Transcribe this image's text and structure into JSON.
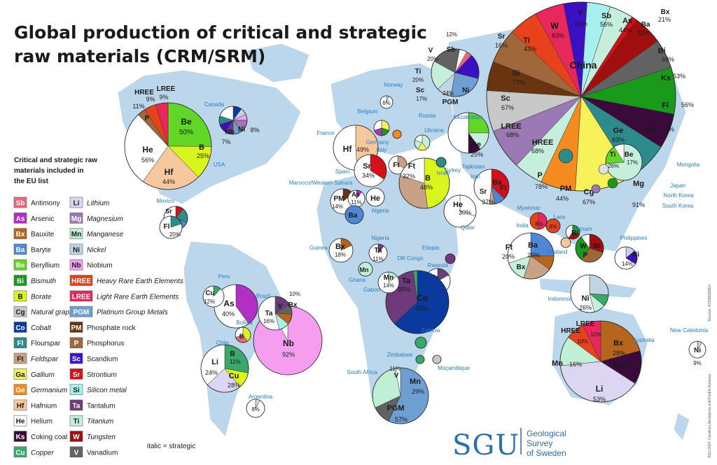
{
  "title_line1": "Global production of critical and strategic",
  "title_line2": "raw materials (CRM/SRM)",
  "legend_heading": [
    "Critical and strategic raw",
    "materials included in",
    "the EU list"
  ],
  "legend_note": "italic = strategic",
  "materials": [
    {
      "sym": "Sb",
      "name": "Antimony",
      "strategic": false,
      "color": "#e9677d"
    },
    {
      "sym": "As",
      "name": "Arsenic",
      "strategic": false,
      "color": "#b32ec2"
    },
    {
      "sym": "Bx",
      "name": "Bauxite",
      "strategic": false,
      "color": "#b5651d"
    },
    {
      "sym": "Ba",
      "name": "Baryte",
      "strategic": false,
      "color": "#4f86d6"
    },
    {
      "sym": "Be",
      "name": "Beryllium",
      "strategic": false,
      "color": "#62d627"
    },
    {
      "sym": "Bi",
      "name": "Bismuth",
      "strategic": true,
      "color": "#1a9a1a"
    },
    {
      "sym": "B",
      "name": "Borate",
      "strategic": true,
      "color": "#d9f51e"
    },
    {
      "sym": "Cg",
      "name": "Natural graphite",
      "strategic": true,
      "color": "#c8c8c8"
    },
    {
      "sym": "Co",
      "name": "Cobalt",
      "strategic": true,
      "color": "#0b3a9e"
    },
    {
      "sym": "Fl",
      "name": "Flourspar",
      "strategic": false,
      "color": "#2e8b8b"
    },
    {
      "sym": "Ft",
      "name": "Feldspar",
      "strategic": true,
      "color": "#c9a187"
    },
    {
      "sym": "Ga",
      "name": "Gallium",
      "strategic": true,
      "color": "#f7f25a"
    },
    {
      "sym": "Ge",
      "name": "Germanium",
      "strategic": true,
      "color": "#f58a1f"
    },
    {
      "sym": "Hf",
      "name": "Hafnium",
      "strategic": false,
      "color": "#f7c89e"
    },
    {
      "sym": "He",
      "name": "Helium",
      "strategic": false,
      "color": "#ffffff"
    },
    {
      "sym": "Ks",
      "name": "Coking coal",
      "strategic": false,
      "color": "#3a0a3a"
    },
    {
      "sym": "Cu",
      "name": "Copper",
      "strategic": true,
      "color": "#3aa86a"
    },
    {
      "sym": "Li",
      "name": "Lithium",
      "strategic": true,
      "color": "#ddd6f2"
    },
    {
      "sym": "Mg",
      "name": "Magnesium",
      "strategic": true,
      "color": "#9b79b5"
    },
    {
      "sym": "Mn",
      "name": "Manganese",
      "strategic": true,
      "color": "#bff0d6"
    },
    {
      "sym": "Ni",
      "name": "Nickel",
      "strategic": true,
      "color": "#c0d4e4"
    },
    {
      "sym": "Nb",
      "name": "Niobium",
      "strategic": false,
      "color": "#f59ef0"
    },
    {
      "sym": "HREE",
      "name": "Heavy Rare Earth Elements",
      "strategic": true,
      "color": "#e8421c"
    },
    {
      "sym": "LREE",
      "name": "Light Rare Earth Elements",
      "strategic": true,
      "color": "#e8285c"
    },
    {
      "sym": "PGM",
      "name": "Platinum Group Metals",
      "strategic": true,
      "color": "#6e9fd3"
    },
    {
      "sym": "PM",
      "name": "Phosphate rock",
      "strategic": false,
      "color": "#6b3410"
    },
    {
      "sym": "P",
      "name": "Phosphorus",
      "strategic": false,
      "color": "#a0673a"
    },
    {
      "sym": "Sc",
      "name": "Scandium",
      "strategic": false,
      "color": "#3a10c2"
    },
    {
      "sym": "Sr",
      "name": "Strontium",
      "strategic": false,
      "color": "#d4101a"
    },
    {
      "sym": "Si",
      "name": "Silicon metal",
      "strategic": true,
      "color": "#a8f0f0"
    },
    {
      "sym": "Ta",
      "name": "Tantalum",
      "strategic": false,
      "color": "#6f3a7a"
    },
    {
      "sym": "Ti",
      "name": "Titanium",
      "strategic": true,
      "color": "#c5eedc"
    },
    {
      "sym": "W",
      "name": "Tungsten",
      "strategic": true,
      "color": "#a00e0e"
    },
    {
      "sym": "V",
      "name": "Vanadium",
      "strategic": false,
      "color": "#626262"
    }
  ],
  "countries": [
    "Canada",
    "USA",
    "Mexico",
    "Peru",
    "Brazil",
    "Bolivia",
    "Chile",
    "Argentina",
    "Norway",
    "Belgium",
    "Germany",
    "France",
    "Italy",
    "Spain",
    "Ukraine",
    "Russia",
    "Kazakhstan",
    "Tajikistan",
    "Turkey",
    "Iran",
    "Israel",
    "Qatar",
    "Marocco/Western Sahara",
    "Algeria",
    "Guinea",
    "Nigeria",
    "Etiopia",
    "Rwanda",
    "DR Congo",
    "Gabon",
    "Ghana",
    "Zambia",
    "Zimbabwe",
    "Moçambique",
    "South Africa",
    "India",
    "Myanmar",
    "Laos",
    "Vietnam",
    "Thailand",
    "Philippines",
    "Indonesia",
    "Mongolia",
    "Japan",
    "North Korea",
    "South Korea",
    "Australia",
    "New Caledonia"
  ],
  "china_label": "China",
  "sgu": {
    "logo": "SGU",
    "line1": "Geological",
    "line2": "Survey",
    "line3": "of Sweden"
  },
  "credits": [
    "Sources: SCREEN3/EU",
    "SGU 2024. Carolina Lillenstjerna and Fredrik Karlsson"
  ]
}
